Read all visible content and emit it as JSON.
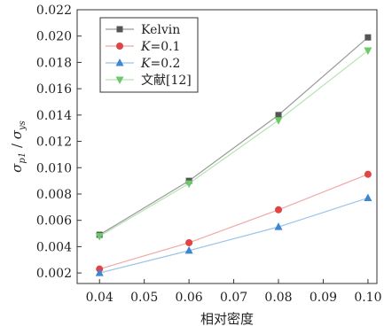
{
  "chart_data": {
    "type": "line",
    "xlabel": "相对密度",
    "ylabel": "σp1 / σys",
    "ylabel_parts": {
      "num_sym": "σ",
      "num_sub": "p1",
      "slash": " / ",
      "den_sym": "σ",
      "den_sub": "ys"
    },
    "x": [
      0.04,
      0.06,
      0.08,
      0.1
    ],
    "xlim": [
      0.035,
      0.102
    ],
    "ylim": [
      0.0012,
      0.022
    ],
    "x_ticks": [
      "0.04",
      "0.05",
      "0.06",
      "0.07",
      "0.08",
      "0.09",
      "0.10"
    ],
    "y_ticks": [
      "0.002",
      "0.004",
      "0.006",
      "0.008",
      "0.010",
      "0.012",
      "0.014",
      "0.016",
      "0.018",
      "0.020",
      "0.022"
    ],
    "grid": false,
    "legend_position": "top-left",
    "series": [
      {
        "name": "Kelvin",
        "name_parts": [
          "Kelvin"
        ],
        "marker": "square",
        "color": "#555555",
        "line_color": "#9a9a9a",
        "values": [
          0.0049,
          0.009,
          0.014,
          0.0199
        ]
      },
      {
        "name": "K=0.1",
        "name_parts": [
          "K",
          "=0.1"
        ],
        "marker": "circle",
        "color": "#e04444",
        "line_color": "#f2a8a8",
        "values": [
          0.0023,
          0.0043,
          0.0068,
          0.0095
        ]
      },
      {
        "name": "K=0.2",
        "name_parts": [
          "K",
          "=0.2"
        ],
        "marker": "triangle-up",
        "color": "#3f86d1",
        "line_color": "#9cc4ea",
        "values": [
          0.002,
          0.0037,
          0.0055,
          0.0077
        ]
      },
      {
        "name": "文献[12]",
        "name_parts": [
          "文献[12]"
        ],
        "marker": "triangle-down",
        "color": "#6cc96a",
        "line_color": "#b6e3b3",
        "values": [
          0.0048,
          0.0088,
          0.0136,
          0.0189
        ]
      }
    ]
  }
}
